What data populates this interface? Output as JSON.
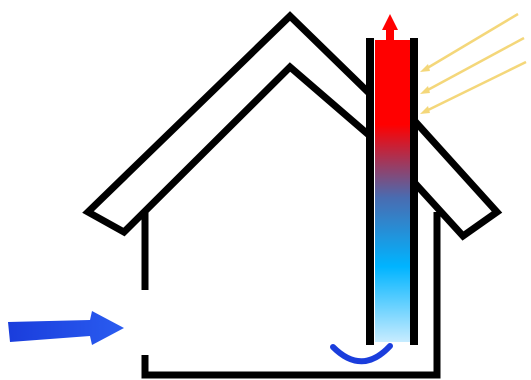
{
  "diagram": {
    "type": "solar-chimney-house-ventilation",
    "colors": {
      "outline": "#000000",
      "hot": "#ff0000",
      "mid": "#4a6bb0",
      "cool": "#00b4ff",
      "cold": "#c8ecff",
      "inflow_arrow": "#1a3ddc",
      "sun_rays": "#f4d77a",
      "swirl": "#1a3ddc",
      "background": "#ffffff"
    },
    "icons": {
      "inflow": "right-arrow-icon",
      "outflow": "up-arrow-icon",
      "sun": "sun-rays-icon",
      "swirl": "curved-arrow-icon"
    }
  }
}
